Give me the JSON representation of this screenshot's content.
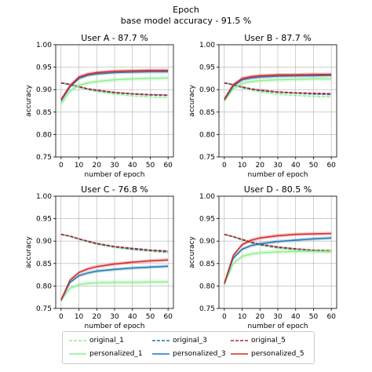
{
  "figure": {
    "title": "Epoch",
    "subtitle": "base model accuracy - 91.5 %"
  },
  "colors": {
    "original_1": "#90ee90",
    "personalized_1": "#90ee90",
    "original_3": "#1f77b4",
    "personalized_3": "#1f77b4",
    "original_5": "#b22222",
    "personalized_5": "#d62728"
  },
  "legend": {
    "placement": "bottom-center",
    "entries": [
      {
        "name": "original_1",
        "style": "dashed",
        "color": "#90ee90"
      },
      {
        "name": "personalized_1",
        "style": "solid",
        "color": "#90ee90"
      },
      {
        "name": "original_3",
        "style": "dashed",
        "color": "#1f77b4"
      },
      {
        "name": "personalized_3",
        "style": "solid",
        "color": "#1f77b4"
      },
      {
        "name": "original_5",
        "style": "dashed",
        "color": "#b22222"
      },
      {
        "name": "personalized_5",
        "style": "solid",
        "color": "#d62728"
      }
    ]
  },
  "chart_data": [
    {
      "type": "line",
      "title": "User A - 87.7 %",
      "xlabel": "number of epoch",
      "ylabel": "accuracy",
      "xlim": [
        -3,
        63
      ],
      "ylim": [
        0.75,
        1.0
      ],
      "xticks": [
        0,
        10,
        20,
        30,
        40,
        50,
        60
      ],
      "yticks": [
        0.75,
        0.8,
        0.85,
        0.9,
        0.95,
        1.0
      ],
      "grid": true,
      "x": [
        0,
        5,
        10,
        15,
        20,
        30,
        40,
        50,
        60
      ],
      "series": [
        {
          "name": "original_1",
          "style": "dashed",
          "values": [
            0.915,
            0.911,
            0.905,
            0.9,
            0.896,
            0.89,
            0.886,
            0.884,
            0.882
          ]
        },
        {
          "name": "original_3",
          "style": "dashed",
          "values": [
            0.915,
            0.911,
            0.906,
            0.901,
            0.898,
            0.893,
            0.89,
            0.888,
            0.887
          ]
        },
        {
          "name": "original_5",
          "style": "dashed",
          "values": [
            0.915,
            0.912,
            0.907,
            0.902,
            0.899,
            0.894,
            0.891,
            0.889,
            0.888
          ]
        },
        {
          "name": "personalized_1",
          "style": "solid",
          "values": [
            0.868,
            0.897,
            0.91,
            0.915,
            0.918,
            0.922,
            0.924,
            0.925,
            0.926
          ]
        },
        {
          "name": "personalized_3",
          "style": "solid",
          "values": [
            0.875,
            0.906,
            0.925,
            0.932,
            0.935,
            0.938,
            0.939,
            0.94,
            0.94
          ]
        },
        {
          "name": "personalized_5",
          "style": "solid",
          "values": [
            0.878,
            0.909,
            0.928,
            0.935,
            0.938,
            0.941,
            0.942,
            0.943,
            0.943
          ]
        }
      ]
    },
    {
      "type": "line",
      "title": "User B - 87.7 %",
      "xlabel": "number of epoch",
      "ylabel": "accuracy",
      "xlim": [
        -3,
        63
      ],
      "ylim": [
        0.75,
        1.0
      ],
      "xticks": [
        0,
        10,
        20,
        30,
        40,
        50,
        60
      ],
      "yticks": [
        0.75,
        0.8,
        0.85,
        0.9,
        0.95,
        1.0
      ],
      "grid": true,
      "x": [
        0,
        5,
        10,
        15,
        20,
        30,
        40,
        50,
        60
      ],
      "series": [
        {
          "name": "original_1",
          "style": "dashed",
          "values": [
            0.915,
            0.91,
            0.904,
            0.899,
            0.895,
            0.89,
            0.887,
            0.885,
            0.884
          ]
        },
        {
          "name": "original_3",
          "style": "dashed",
          "values": [
            0.915,
            0.911,
            0.905,
            0.901,
            0.898,
            0.894,
            0.892,
            0.89,
            0.889
          ]
        },
        {
          "name": "original_5",
          "style": "dashed",
          "values": [
            0.915,
            0.911,
            0.906,
            0.902,
            0.899,
            0.895,
            0.893,
            0.892,
            0.891
          ]
        },
        {
          "name": "personalized_1",
          "style": "solid",
          "values": [
            0.875,
            0.902,
            0.914,
            0.918,
            0.92,
            0.922,
            0.923,
            0.924,
            0.924
          ]
        },
        {
          "name": "personalized_3",
          "style": "solid",
          "values": [
            0.877,
            0.908,
            0.922,
            0.926,
            0.928,
            0.93,
            0.931,
            0.931,
            0.932
          ]
        },
        {
          "name": "personalized_5",
          "style": "solid",
          "values": [
            0.879,
            0.911,
            0.925,
            0.929,
            0.931,
            0.933,
            0.933,
            0.934,
            0.934
          ]
        }
      ]
    },
    {
      "type": "line",
      "title": "User C - 76.8 %",
      "xlabel": "number of epoch",
      "ylabel": "accuracy",
      "xlim": [
        -3,
        63
      ],
      "ylim": [
        0.75,
        1.0
      ],
      "xticks": [
        0,
        10,
        20,
        30,
        40,
        50,
        60
      ],
      "yticks": [
        0.75,
        0.8,
        0.85,
        0.9,
        0.95,
        1.0
      ],
      "grid": true,
      "x": [
        0,
        5,
        10,
        15,
        20,
        30,
        40,
        50,
        60
      ],
      "series": [
        {
          "name": "original_1",
          "style": "dashed",
          "values": [
            0.915,
            0.91,
            0.904,
            0.898,
            0.893,
            0.886,
            0.881,
            0.877,
            0.874
          ]
        },
        {
          "name": "original_3",
          "style": "dashed",
          "values": [
            0.915,
            0.911,
            0.905,
            0.899,
            0.894,
            0.887,
            0.882,
            0.879,
            0.876
          ]
        },
        {
          "name": "original_5",
          "style": "dashed",
          "values": [
            0.915,
            0.911,
            0.905,
            0.9,
            0.895,
            0.888,
            0.884,
            0.88,
            0.878
          ]
        },
        {
          "name": "personalized_1",
          "style": "solid",
          "values": [
            0.768,
            0.795,
            0.803,
            0.806,
            0.807,
            0.808,
            0.808,
            0.809,
            0.809
          ]
        },
        {
          "name": "personalized_3",
          "style": "solid",
          "values": [
            0.768,
            0.808,
            0.823,
            0.829,
            0.833,
            0.837,
            0.84,
            0.842,
            0.844
          ]
        },
        {
          "name": "personalized_5",
          "style": "solid",
          "values": [
            0.769,
            0.813,
            0.83,
            0.838,
            0.843,
            0.849,
            0.853,
            0.856,
            0.858
          ]
        }
      ]
    },
    {
      "type": "line",
      "title": "User D - 80.5 %",
      "xlabel": "number of epoch",
      "ylabel": "accuracy",
      "xlim": [
        -3,
        63
      ],
      "ylim": [
        0.75,
        1.0
      ],
      "xticks": [
        0,
        10,
        20,
        30,
        40,
        50,
        60
      ],
      "yticks": [
        0.75,
        0.8,
        0.85,
        0.9,
        0.95,
        1.0
      ],
      "grid": true,
      "x": [
        0,
        5,
        10,
        15,
        20,
        30,
        40,
        50,
        60
      ],
      "series": [
        {
          "name": "original_1",
          "style": "dashed",
          "values": [
            0.915,
            0.909,
            0.902,
            0.896,
            0.891,
            0.884,
            0.88,
            0.877,
            0.875
          ]
        },
        {
          "name": "original_3",
          "style": "dashed",
          "values": [
            0.915,
            0.91,
            0.903,
            0.897,
            0.892,
            0.886,
            0.882,
            0.879,
            0.877
          ]
        },
        {
          "name": "original_5",
          "style": "dashed",
          "values": [
            0.915,
            0.91,
            0.904,
            0.898,
            0.893,
            0.887,
            0.883,
            0.88,
            0.879
          ]
        },
        {
          "name": "personalized_1",
          "style": "solid",
          "values": [
            0.803,
            0.85,
            0.866,
            0.871,
            0.874,
            0.876,
            0.877,
            0.877,
            0.877
          ]
        },
        {
          "name": "personalized_3",
          "style": "solid",
          "values": [
            0.805,
            0.862,
            0.882,
            0.89,
            0.894,
            0.899,
            0.902,
            0.905,
            0.907
          ]
        },
        {
          "name": "personalized_5",
          "style": "solid",
          "values": [
            0.806,
            0.868,
            0.892,
            0.902,
            0.907,
            0.912,
            0.915,
            0.916,
            0.917
          ]
        }
      ]
    }
  ]
}
